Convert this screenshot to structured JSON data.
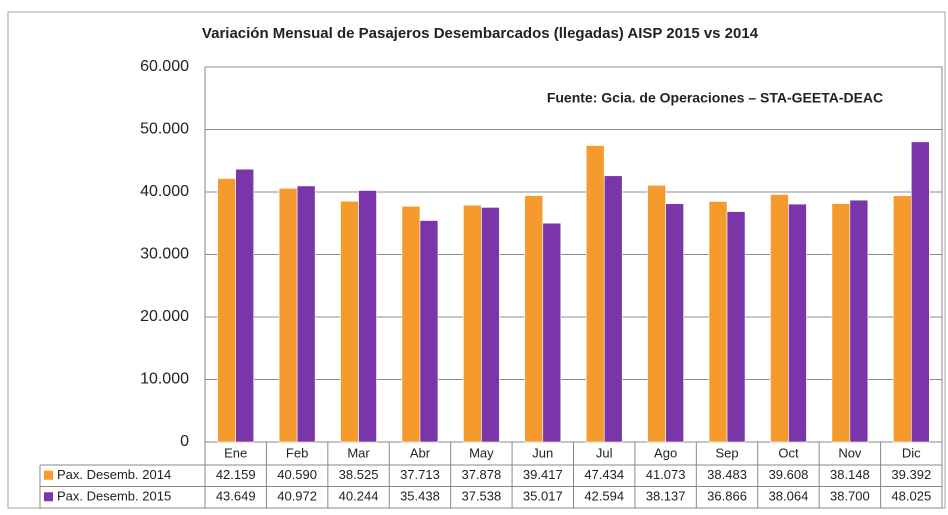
{
  "chart_data": {
    "type": "bar",
    "title": "Variación Mensual de Pasajeros Desembarcados (llegadas) AISP 2015 vs 2014",
    "annotation": "Fuente: Gcia. de Operaciones – STA-GEETA-DEAC",
    "categories": [
      "Ene",
      "Feb",
      "Mar",
      "Abr",
      "May",
      "Jun",
      "Jul",
      "Ago",
      "Sep",
      "Oct",
      "Nov",
      "Dic"
    ],
    "series": [
      {
        "name": "Pax. Desemb. 2014",
        "color": "#f59a2c",
        "values": [
          42159,
          40590,
          38525,
          37713,
          37878,
          39417,
          47434,
          41073,
          38483,
          39608,
          38148,
          39392
        ],
        "value_labels": [
          "42.159",
          "40.590",
          "38.525",
          "37.713",
          "37.878",
          "39.417",
          "47.434",
          "41.073",
          "38.483",
          "39.608",
          "38.148",
          "39.392"
        ]
      },
      {
        "name": "Pax. Desemb. 2015",
        "color": "#7a35a8",
        "values": [
          43649,
          40972,
          40244,
          35438,
          37538,
          35017,
          42594,
          38137,
          36866,
          38064,
          38700,
          48025
        ],
        "value_labels": [
          "43.649",
          "40.972",
          "40.244",
          "35.438",
          "37.538",
          "35.017",
          "42.594",
          "38.137",
          "36.866",
          "38.064",
          "38.700",
          "48.025"
        ]
      }
    ],
    "ylim": [
      0,
      60000
    ],
    "yticks": [
      0,
      {
        "value": 10000,
        "label": "10.000"
      },
      {
        "value": 20000,
        "label": "20.000"
      },
      {
        "value": 30000,
        "label": "30.000"
      },
      {
        "value": 40000,
        "label": "40.000"
      },
      {
        "value": 50000,
        "label": "50.000"
      },
      {
        "value": 60000,
        "label": "60.000"
      }
    ],
    "grid": true
  }
}
